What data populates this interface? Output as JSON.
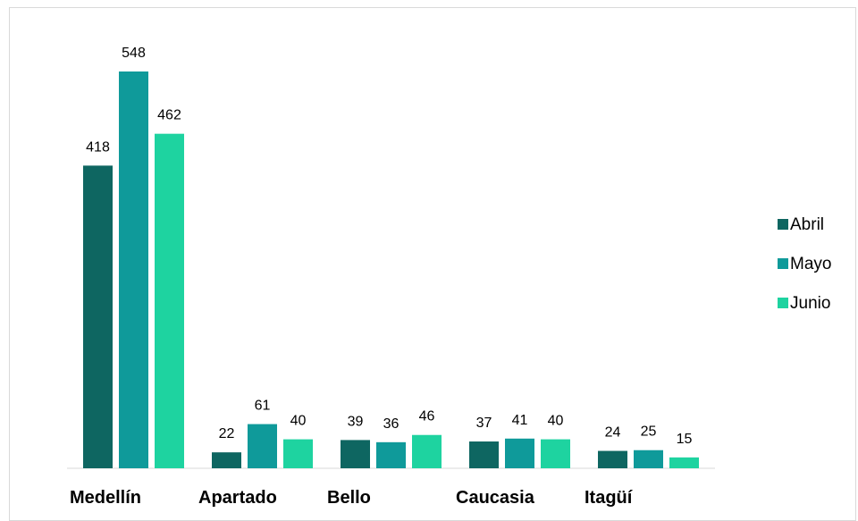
{
  "chart_data": {
    "type": "bar",
    "title": "",
    "xlabel": "",
    "ylabel": "",
    "categories": [
      "Medellín",
      "Apartado",
      "Bello",
      "Caucasia",
      "Itagüí"
    ],
    "series": [
      {
        "name": "Abril",
        "values": [
          418,
          22,
          39,
          37,
          24
        ],
        "color": "#0e6661"
      },
      {
        "name": "Mayo",
        "values": [
          548,
          61,
          36,
          41,
          25
        ],
        "color": "#0f9a9a"
      },
      {
        "name": "Junio",
        "values": [
          462,
          40,
          46,
          40,
          15
        ],
        "color": "#1ed3a0"
      }
    ],
    "ylim": [
      0,
      580
    ],
    "grid": false,
    "legend_position": "right"
  }
}
